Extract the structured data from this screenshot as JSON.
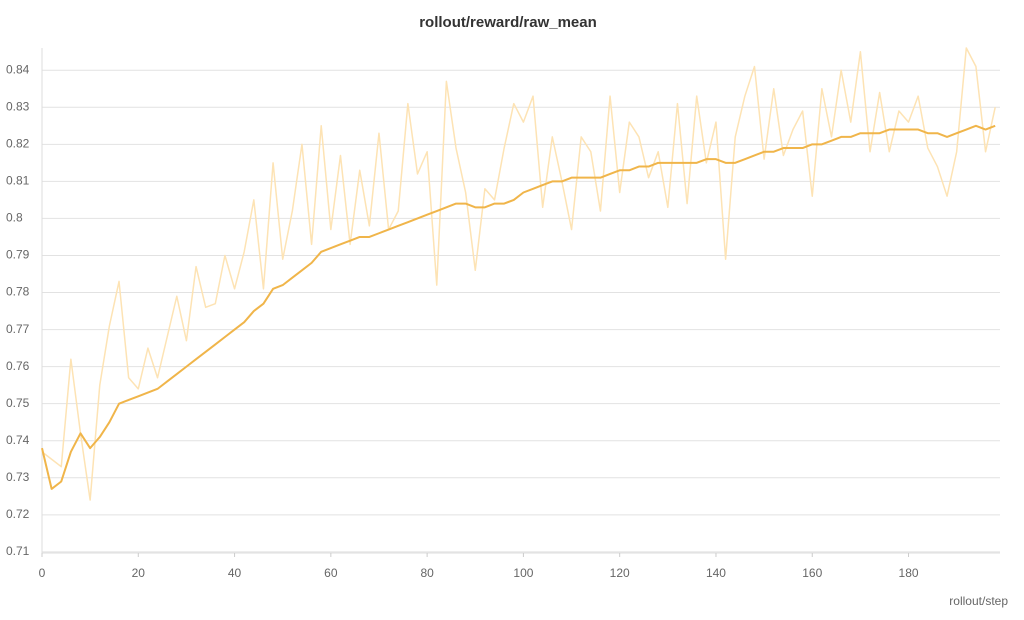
{
  "chart_data": {
    "type": "line",
    "title": "rollout/reward/raw_mean",
    "x_label": "rollout/step",
    "x": [
      0,
      2,
      4,
      6,
      8,
      10,
      12,
      14,
      16,
      18,
      20,
      22,
      24,
      26,
      28,
      30,
      32,
      34,
      36,
      38,
      40,
      42,
      44,
      46,
      48,
      50,
      52,
      54,
      56,
      58,
      60,
      62,
      64,
      66,
      68,
      70,
      72,
      74,
      76,
      78,
      80,
      82,
      84,
      86,
      88,
      90,
      92,
      94,
      96,
      98,
      100,
      102,
      104,
      106,
      108,
      110,
      112,
      114,
      116,
      118,
      120,
      122,
      124,
      126,
      128,
      130,
      132,
      134,
      136,
      138,
      140,
      142,
      144,
      146,
      148,
      150,
      152,
      154,
      156,
      158,
      160,
      162,
      164,
      166,
      168,
      170,
      172,
      174,
      176,
      178,
      180,
      182,
      184,
      186,
      188,
      190,
      192,
      194,
      196,
      198
    ],
    "series": [
      {
        "color": "#fde3b4",
        "values": [
          0.737,
          0.735,
          0.733,
          0.762,
          0.742,
          0.724,
          0.755,
          0.771,
          0.783,
          0.757,
          0.754,
          0.765,
          0.757,
          0.768,
          0.779,
          0.767,
          0.787,
          0.776,
          0.777,
          0.79,
          0.781,
          0.791,
          0.805,
          0.781,
          0.815,
          0.789,
          0.802,
          0.82,
          0.793,
          0.825,
          0.797,
          0.817,
          0.793,
          0.813,
          0.798,
          0.823,
          0.797,
          0.802,
          0.831,
          0.812,
          0.818,
          0.782,
          0.837,
          0.819,
          0.807,
          0.786,
          0.808,
          0.805,
          0.819,
          0.831,
          0.826,
          0.833,
          0.803,
          0.822,
          0.81,
          0.797,
          0.822,
          0.818,
          0.802,
          0.833,
          0.807,
          0.826,
          0.822,
          0.811,
          0.818,
          0.803,
          0.831,
          0.804,
          0.833,
          0.815,
          0.826,
          0.789,
          0.822,
          0.833,
          0.841,
          0.816,
          0.835,
          0.817,
          0.824,
          0.829,
          0.806,
          0.835,
          0.822,
          0.84,
          0.826,
          0.845,
          0.818,
          0.834,
          0.818,
          0.829,
          0.826,
          0.833,
          0.819,
          0.814,
          0.806,
          0.818,
          0.846,
          0.841,
          0.818,
          0.83
        ]
      },
      {
        "color": "#f0b54a",
        "values": [
          0.738,
          0.727,
          0.729,
          0.737,
          0.742,
          0.738,
          0.741,
          0.745,
          0.75,
          0.751,
          0.752,
          0.753,
          0.754,
          0.756,
          0.758,
          0.76,
          0.762,
          0.764,
          0.766,
          0.768,
          0.77,
          0.772,
          0.775,
          0.777,
          0.781,
          0.782,
          0.784,
          0.786,
          0.788,
          0.791,
          0.792,
          0.793,
          0.794,
          0.795,
          0.795,
          0.796,
          0.797,
          0.798,
          0.799,
          0.8,
          0.801,
          0.802,
          0.803,
          0.804,
          0.804,
          0.803,
          0.803,
          0.804,
          0.804,
          0.805,
          0.807,
          0.808,
          0.809,
          0.81,
          0.81,
          0.811,
          0.811,
          0.811,
          0.811,
          0.812,
          0.813,
          0.813,
          0.814,
          0.814,
          0.815,
          0.815,
          0.815,
          0.815,
          0.815,
          0.816,
          0.816,
          0.815,
          0.815,
          0.816,
          0.817,
          0.818,
          0.818,
          0.819,
          0.819,
          0.819,
          0.82,
          0.82,
          0.821,
          0.822,
          0.822,
          0.823,
          0.823,
          0.823,
          0.824,
          0.824,
          0.824,
          0.824,
          0.823,
          0.823,
          0.822,
          0.823,
          0.824,
          0.825,
          0.824,
          0.825
        ]
      }
    ],
    "xlim": [
      0,
      199
    ],
    "xticks": [
      0,
      20,
      40,
      60,
      80,
      100,
      120,
      140,
      160,
      180
    ],
    "ylim": [
      0.7097,
      0.846
    ],
    "yticks": [
      0.71,
      0.72,
      0.73,
      0.74,
      0.75,
      0.76,
      0.77,
      0.78,
      0.79,
      0.8,
      0.81,
      0.82,
      0.83,
      0.84
    ],
    "grid": true
  }
}
